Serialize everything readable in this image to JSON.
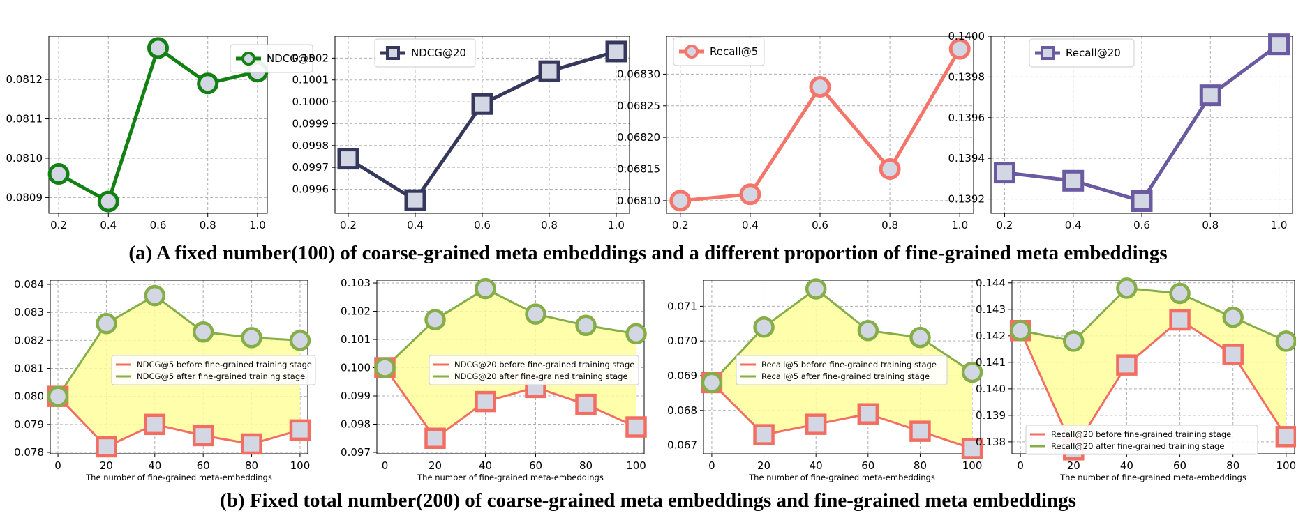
{
  "captions": {
    "a": "(a) A fixed number(100) of coarse-grained meta embeddings and a different proportion of fine-grained meta embeddings",
    "b": "(b) Fixed total number(200) of coarse-grained meta embeddings and fine-grained meta embeddings"
  },
  "colors": {
    "green_a": "#128012",
    "navy": "#35385c",
    "salmon": "#f5756b",
    "purple": "#6a5aa0",
    "marker_fill": "#d3d7e3",
    "after_green": "#86ae48",
    "before_red": "#f36e62",
    "fill_yellow": "#ffff9c"
  },
  "chart_data": [
    {
      "type": "line",
      "marker": "circle",
      "color": "#128012",
      "x": [
        0.2,
        0.4,
        0.6,
        0.8,
        1.0
      ],
      "series": [
        {
          "name": "NDCG@5",
          "values": [
            0.08096,
            0.08089,
            0.08128,
            0.08119,
            0.08122
          ]
        }
      ],
      "ylim": [
        0.08086,
        0.08131
      ],
      "yticks": [
        0.0809,
        0.081,
        0.0811,
        0.0812
      ],
      "ytick_labels": [
        "0.0809",
        "0.0810",
        "0.0811",
        "0.0812"
      ],
      "xticks": [
        0.2,
        0.4,
        0.6,
        0.8,
        1.0
      ],
      "xtick_labels": [
        "0.2",
        "0.4",
        "0.6",
        "0.8",
        "1.0"
      ],
      "xlabel": "",
      "legend": "top-right",
      "grid": true
    },
    {
      "type": "line",
      "marker": "square",
      "color": "#35385c",
      "x": [
        0.2,
        0.4,
        0.6,
        0.8,
        1.0
      ],
      "series": [
        {
          "name": "NDCG@20",
          "values": [
            0.09974,
            0.09955,
            0.09999,
            0.10014,
            0.10023
          ]
        }
      ],
      "ylim": [
        0.09949,
        0.1003
      ],
      "yticks": [
        0.0996,
        0.0997,
        0.0998,
        0.0999,
        0.1,
        0.1001,
        0.1002
      ],
      "ytick_labels": [
        "0.0996",
        "0.0997",
        "0.0998",
        "0.0999",
        "0.1000",
        "0.1001",
        "0.1002"
      ],
      "xticks": [
        0.2,
        0.4,
        0.6,
        0.8,
        1.0
      ],
      "xtick_labels": [
        "0.2",
        "0.4",
        "0.6",
        "0.8",
        "1.0"
      ],
      "xlabel": "",
      "legend": "top-left",
      "grid": true
    },
    {
      "type": "line",
      "marker": "circle",
      "color": "#f5756b",
      "x": [
        0.2,
        0.4,
        0.6,
        0.8,
        1.0
      ],
      "series": [
        {
          "name": "Recall@5",
          "values": [
            0.0681,
            0.06811,
            0.06828,
            0.06815,
            0.06834
          ]
        }
      ],
      "ylim": [
        0.06808,
        0.06836
      ],
      "yticks": [
        0.0681,
        0.06815,
        0.0682,
        0.06825,
        0.0683
      ],
      "ytick_labels": [
        "0.06810",
        "0.06815",
        "0.06820",
        "0.06825",
        "0.06830"
      ],
      "xticks": [
        0.2,
        0.4,
        0.6,
        0.8,
        1.0
      ],
      "xtick_labels": [
        "0.2",
        "0.4",
        "0.6",
        "0.8",
        "1.0"
      ],
      "xlabel": "",
      "legend": "top-left",
      "grid": true
    },
    {
      "type": "line",
      "marker": "square",
      "color": "#6a5aa0",
      "x": [
        0.2,
        0.4,
        0.6,
        0.8,
        1.0
      ],
      "series": [
        {
          "name": "Recall@20",
          "values": [
            0.13933,
            0.13929,
            0.13919,
            0.13971,
            0.13996
          ]
        }
      ],
      "ylim": [
        0.13913,
        0.14
      ],
      "yticks": [
        0.1392,
        0.1394,
        0.1396,
        0.1398,
        0.14
      ],
      "ytick_labels": [
        "0.1392",
        "0.1394",
        "0.1396",
        "0.1398",
        "0.1400"
      ],
      "xticks": [
        0.2,
        0.4,
        0.6,
        0.8,
        1.0
      ],
      "xtick_labels": [
        "0.2",
        "0.4",
        "0.6",
        "0.8",
        "1.0"
      ],
      "xlabel": "",
      "legend": "top-left",
      "grid": true
    },
    {
      "type": "area",
      "x": [
        0,
        20,
        40,
        60,
        80,
        100
      ],
      "series": [
        {
          "name": "NDCG@5 before fine-grained training stage",
          "values": [
            0.08,
            0.0782,
            0.079,
            0.0786,
            0.0783,
            0.0788
          ],
          "marker": "square"
        },
        {
          "name": "NDCG@5 after fine-grained training stage",
          "values": [
            0.08,
            0.0826,
            0.0836,
            0.0823,
            0.0821,
            0.082
          ],
          "marker": "circle"
        }
      ],
      "ylim": [
        0.07795,
        0.08415
      ],
      "yticks": [
        0.078,
        0.079,
        0.08,
        0.081,
        0.082,
        0.083,
        0.084
      ],
      "ytick_labels": [
        "0.078",
        "0.079",
        "0.080",
        "0.081",
        "0.082",
        "0.083",
        "0.084"
      ],
      "xticks": [
        0,
        20,
        40,
        60,
        80,
        100
      ],
      "xtick_labels": [
        "0",
        "20",
        "40",
        "60",
        "80",
        "100"
      ],
      "xlabel": "The number of fine-grained meta-embeddings",
      "legend": "center-right",
      "grid": true
    },
    {
      "type": "area",
      "x": [
        0,
        20,
        40,
        60,
        80,
        100
      ],
      "series": [
        {
          "name": "NDCG@20 before fine-grained training stage",
          "values": [
            0.1,
            0.0975,
            0.0988,
            0.0993,
            0.0987,
            0.0979
          ],
          "marker": "square"
        },
        {
          "name": "NDCG@20 after fine-grained training stage",
          "values": [
            0.1,
            0.1017,
            0.1028,
            0.1019,
            0.1015,
            0.1012
          ],
          "marker": "circle"
        }
      ],
      "ylim": [
        0.09695,
        0.1031
      ],
      "yticks": [
        0.097,
        0.098,
        0.099,
        0.1,
        0.101,
        0.102,
        0.103
      ],
      "ytick_labels": [
        "0.097",
        "0.098",
        "0.099",
        "0.100",
        "0.101",
        "0.102",
        "0.103"
      ],
      "xticks": [
        0,
        20,
        40,
        60,
        80,
        100
      ],
      "xtick_labels": [
        "0",
        "20",
        "40",
        "60",
        "80",
        "100"
      ],
      "xlabel": "The number of fine-grained meta-embeddings",
      "legend": "center-right",
      "grid": true
    },
    {
      "type": "area",
      "x": [
        0,
        20,
        40,
        60,
        80,
        100
      ],
      "series": [
        {
          "name": "Recall@5 before fine-grained training stage",
          "values": [
            0.0688,
            0.0673,
            0.0676,
            0.0679,
            0.0674,
            0.0669
          ],
          "marker": "square"
        },
        {
          "name": "Recall@5 after fine-grained training stage",
          "values": [
            0.0688,
            0.0704,
            0.0715,
            0.0703,
            0.0701,
            0.0691
          ],
          "marker": "circle"
        }
      ],
      "ylim": [
        0.06675,
        0.07175
      ],
      "yticks": [
        0.067,
        0.068,
        0.069,
        0.07,
        0.071
      ],
      "ytick_labels": [
        "0.067",
        "0.068",
        "0.069",
        "0.070",
        "0.071"
      ],
      "xticks": [
        0,
        20,
        40,
        60,
        80,
        100
      ],
      "xtick_labels": [
        "0",
        "20",
        "40",
        "60",
        "80",
        "100"
      ],
      "xlabel": "The number of fine-grained meta-embeddings",
      "legend": "center-right",
      "grid": true
    },
    {
      "type": "area",
      "x": [
        0,
        20,
        40,
        60,
        80,
        100
      ],
      "series": [
        {
          "name": "Recall@20 before fine-grained training stage",
          "values": [
            0.1422,
            0.1377,
            0.1409,
            0.1426,
            0.1413,
            0.1382
          ],
          "marker": "square"
        },
        {
          "name": "Recall@20 after fine-grained training stage",
          "values": [
            0.1422,
            0.1418,
            0.1438,
            0.1436,
            0.1427,
            0.1418
          ],
          "marker": "circle"
        }
      ],
      "ylim": [
        0.13755,
        0.1441
      ],
      "yticks": [
        0.138,
        0.139,
        0.14,
        0.141,
        0.142,
        0.143,
        0.144
      ],
      "ytick_labels": [
        "0.138",
        "0.139",
        "0.140",
        "0.141",
        "0.142",
        "0.143",
        "0.144"
      ],
      "xticks": [
        0,
        20,
        40,
        60,
        80,
        100
      ],
      "xtick_labels": [
        "0",
        "20",
        "40",
        "60",
        "80",
        "100"
      ],
      "xlabel": "The number of fine-grained meta-embeddings",
      "legend": "bottom-center",
      "grid": true
    }
  ]
}
